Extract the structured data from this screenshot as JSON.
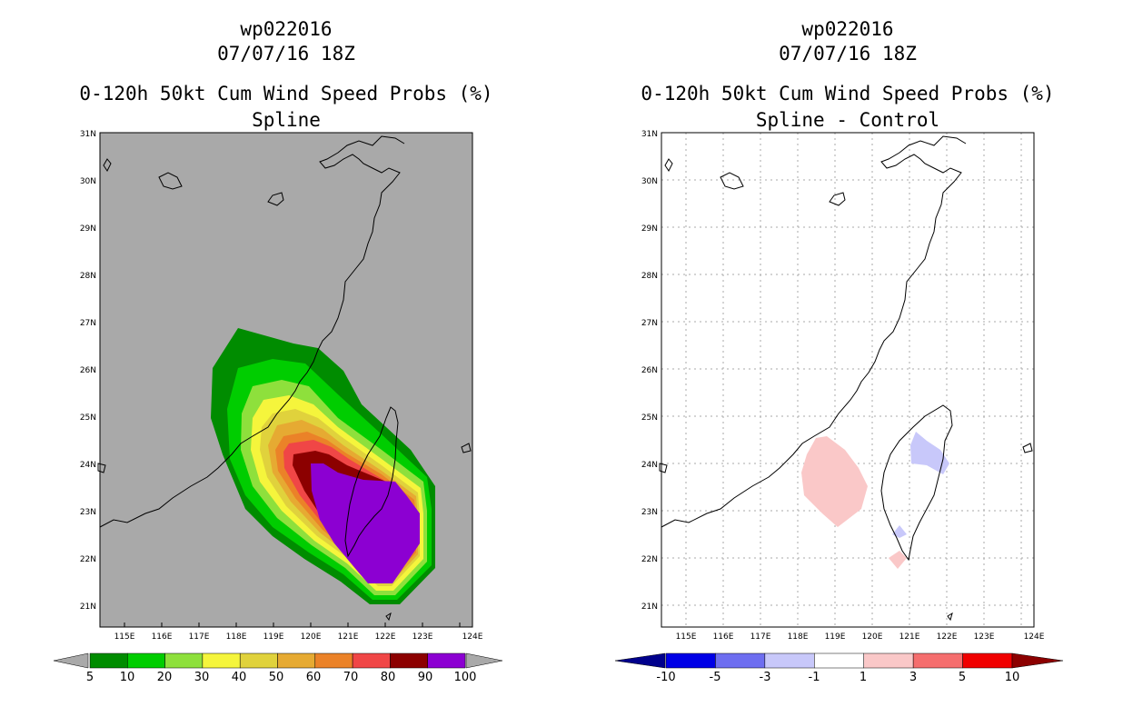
{
  "left": {
    "storm_id": "wp022016",
    "datetime": "07/07/16 18Z",
    "product": "0-120h 50kt Cum Wind Speed Probs (%)",
    "subtitle": "Spline",
    "colorbar": {
      "labels": [
        "5",
        "10",
        "20",
        "30",
        "40",
        "50",
        "60",
        "70",
        "80",
        "90",
        "100"
      ],
      "colors": [
        "#008c00",
        "#00cd00",
        "#8ee03c",
        "#f5f53c",
        "#e0d23c",
        "#e6aa32",
        "#eb8228",
        "#f04646",
        "#8c0000",
        "#8c00d2"
      ],
      "under_color": "#a9a9a9",
      "over_color": "#a9a9a9"
    }
  },
  "right": {
    "storm_id": "wp022016",
    "datetime": "07/07/16 18Z",
    "product": "0-120h 50kt Cum Wind Speed Probs (%)",
    "subtitle": "Spline - Control",
    "colorbar": {
      "labels": [
        "-10",
        "-5",
        "-3",
        "-1",
        "1",
        "3",
        "5",
        "10"
      ],
      "colors": [
        "#0000e6",
        "#6e6ef0",
        "#c8c8fa",
        "#ffffff",
        "#fac8c8",
        "#f56e6e",
        "#f00000"
      ],
      "under_color": "#00008c",
      "over_color": "#8c0000"
    }
  },
  "axes": {
    "lon_labels": [
      "115E",
      "116E",
      "117E",
      "118E",
      "119E",
      "120E",
      "121E",
      "122E",
      "123E",
      "124E"
    ],
    "lat_labels": [
      "31N",
      "30N",
      "29N",
      "28N",
      "27N",
      "26N",
      "25N",
      "24N",
      "23N",
      "22N",
      "21N"
    ]
  },
  "colors": {
    "ocean_left": "#a9a9a9",
    "grid_right": "#aaaaaa"
  }
}
